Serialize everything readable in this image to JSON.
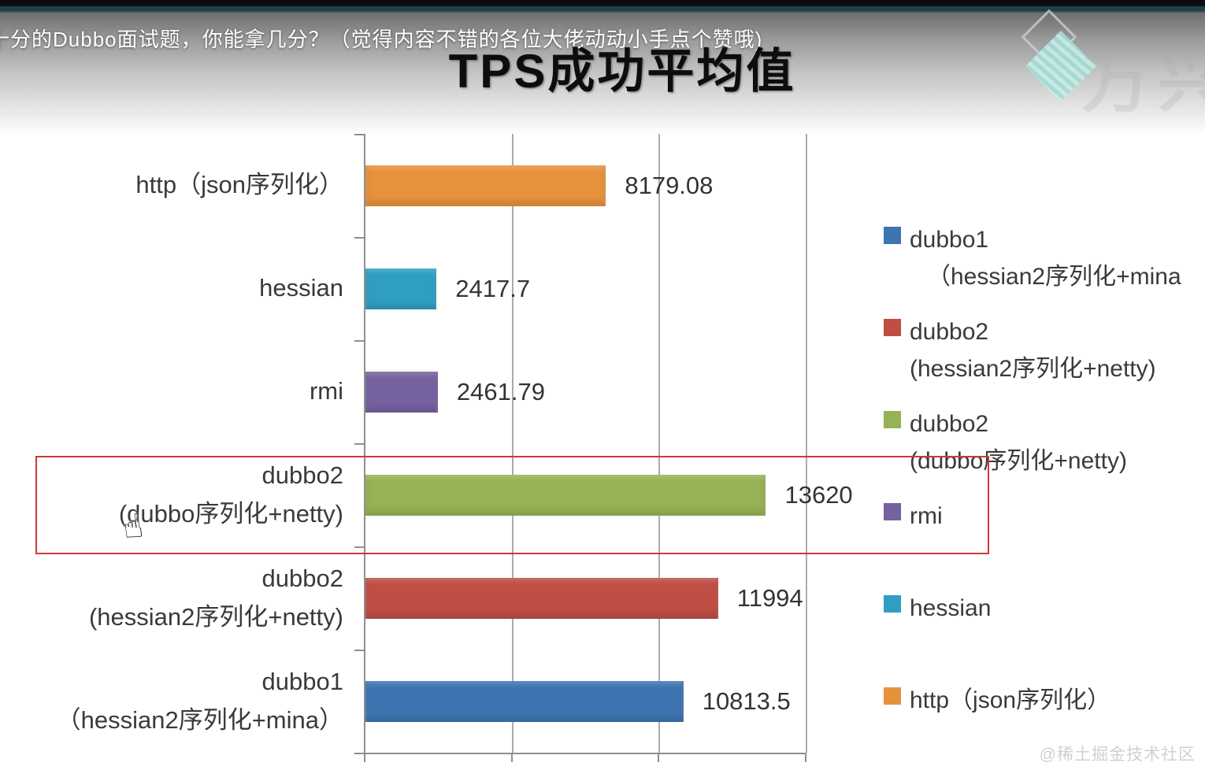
{
  "overlay": {
    "video_title": "十分的Dubbo面试题，你能拿几分？（觉得内容不错的各位大佬动动小手点个赞哦)"
  },
  "logo": {
    "text": "万兴"
  },
  "watermark": "@稀土掘金技术社区",
  "cursor_glyph": "☝",
  "chart_data": {
    "type": "bar",
    "orientation": "horizontal",
    "title": "TPS成功平均值",
    "categories": [
      [
        "http（json序列化）"
      ],
      [
        "hessian"
      ],
      [
        "rmi"
      ],
      [
        "dubbo2",
        "(dubbo序列化+netty)"
      ],
      [
        "dubbo2",
        "(hessian2序列化+netty)"
      ],
      [
        "dubbo1",
        "（hessian2序列化+mina）"
      ]
    ],
    "values": [
      8179.08,
      2417.7,
      2461.79,
      13620,
      11994,
      10813.5
    ],
    "value_labels": [
      "8179.08",
      "2417.7",
      "2461.79",
      "13620",
      "11994",
      "10813.5"
    ],
    "colors": [
      "#E6913C",
      "#2F9FC1",
      "#75629F",
      "#97B254",
      "#BF4E44",
      "#3F74B2"
    ],
    "xlim": [
      0,
      15000
    ],
    "gridline_interval": 5000,
    "grid": true,
    "legend_position": "right",
    "legend": [
      {
        "label": "dubbo1",
        "sublabel": "（hessian2序列化+mina",
        "color": "#3F74B2"
      },
      {
        "label": "dubbo2",
        "sublabel": "(hessian2序列化+netty)",
        "color": "#BF4E44"
      },
      {
        "label": "dubbo2",
        "sublabel": "(dubbo序列化+netty)",
        "color": "#97B254"
      },
      {
        "label": "rmi",
        "sublabel": "",
        "color": "#75629F"
      },
      {
        "label": "hessian",
        "sublabel": "",
        "color": "#2F9FC1"
      },
      {
        "label": "http（json序列化）",
        "sublabel": "",
        "color": "#E6913C"
      }
    ],
    "highlight": {
      "category": "dubbo2 (dubbo序列化+netty)",
      "row_index": 3,
      "color": "#cc3a30"
    }
  }
}
